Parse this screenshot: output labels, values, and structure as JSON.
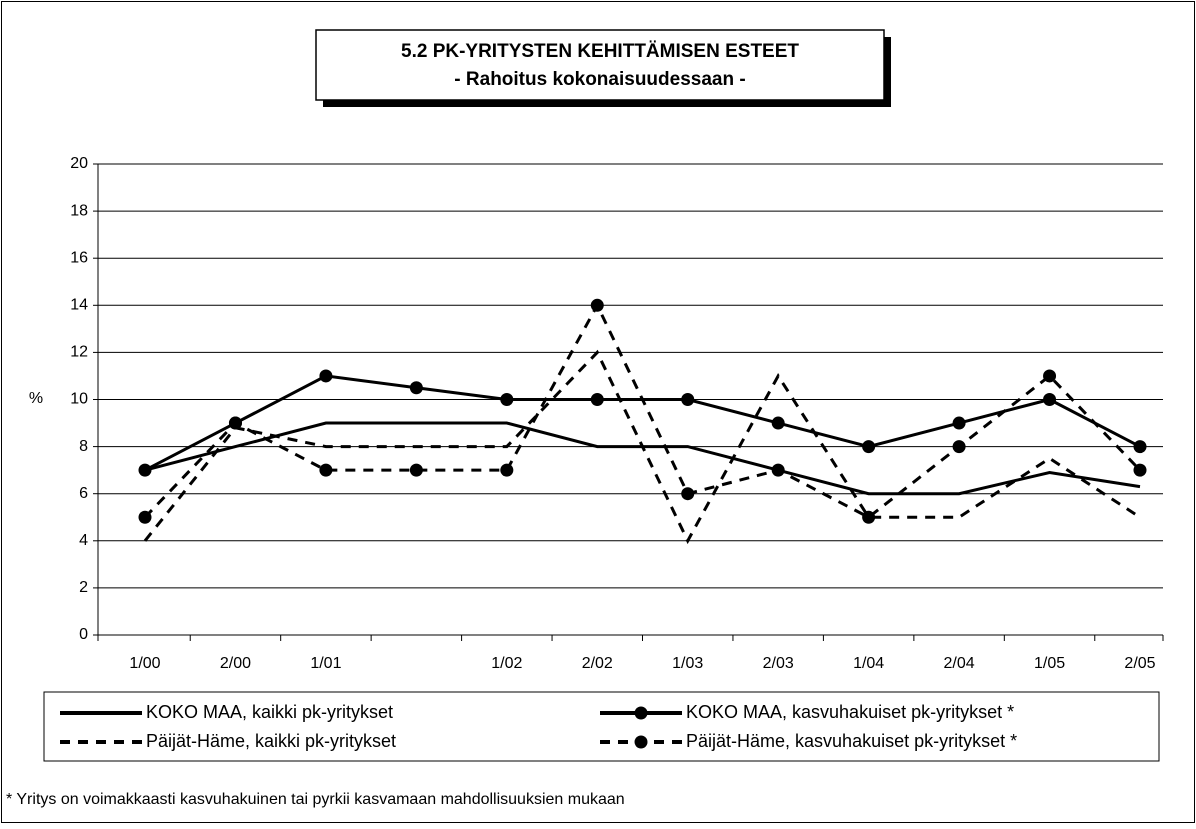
{
  "chart_data": {
    "type": "line",
    "title": "5.2 PK-YRITYSTEN KEHITTÄMISEN ESTEET",
    "subtitle": "- Rahoitus kokonaisuudessaan -",
    "y_label": "%",
    "categories": [
      "1/00",
      "2/00",
      "1/01",
      null,
      "1/02",
      "2/02",
      "1/03",
      "2/03",
      "1/04",
      "2/04",
      "1/05",
      "2/05"
    ],
    "series": [
      {
        "name": "KOKO MAA, kaikki pk-yritykset",
        "color": "#000000",
        "style": "solid",
        "marker": "none",
        "values": [
          7,
          8,
          9,
          9,
          9,
          8,
          8,
          7,
          6,
          6,
          6.9,
          6.3
        ]
      },
      {
        "name": "KOKO MAA, kasvuhakuiset pk-yritykset *",
        "color": "#000000",
        "style": "solid",
        "marker": "circle",
        "values": [
          7,
          9,
          11,
          10.5,
          10,
          10,
          10,
          9,
          8,
          9,
          10,
          8
        ]
      },
      {
        "name": "Päijät-Häme, kaikki pk-yritykset",
        "color": "#000000",
        "style": "dashed",
        "marker": "none",
        "values": [
          4,
          8.8,
          8,
          8,
          8,
          12,
          4,
          11,
          5,
          5,
          7.5,
          5
        ]
      },
      {
        "name": "Päijät-Häme, kasvuhakuiset pk-yritykset *",
        "color": "#000000",
        "style": "dashed",
        "marker": "circle",
        "values": [
          5,
          9,
          7,
          7,
          7,
          14,
          6,
          7,
          5,
          8,
          11,
          7
        ]
      }
    ],
    "ylim": [
      0,
      20
    ],
    "yticks": [
      0,
      2,
      4,
      6,
      8,
      10,
      12,
      14,
      16,
      18,
      20
    ],
    "grid": true,
    "footnote": "* Yritys on voimakkaasti kasvuhakuinen tai pyrkii kasvamaan mahdollisuuksien mukaan"
  }
}
